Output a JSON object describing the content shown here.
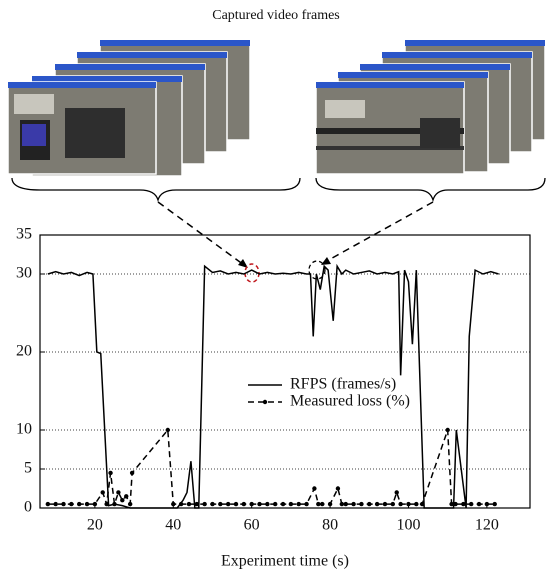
{
  "chart_data": {
    "type": "line",
    "title": "Captured video frames",
    "x_label": "Experiment time (s)",
    "xlim": [
      6,
      131
    ],
    "xticks": [
      20,
      40,
      60,
      80,
      100,
      120
    ],
    "ylim": [
      0,
      35
    ],
    "yticks": [
      0,
      5,
      10,
      20,
      30,
      35
    ],
    "grid": true,
    "series": [
      {
        "name": "RFPS (frames/s)",
        "color": "#000000",
        "style": "solid",
        "x": [
          8,
          10,
          12,
          14,
          16,
          18,
          19.5,
          20.5,
          21.5,
          23.5,
          25,
          27,
          29,
          31,
          33,
          35,
          37,
          39,
          41,
          42.5,
          43.5,
          44.5,
          45.5,
          46.5,
          48,
          50,
          52,
          54,
          56,
          58,
          60,
          62,
          64,
          66,
          68,
          70,
          72,
          74,
          75,
          75.7,
          76.5,
          77.5,
          78.5,
          79.5,
          80.8,
          81.8,
          83,
          84,
          86,
          88,
          90,
          92,
          94,
          96,
          97.5,
          98,
          99,
          100,
          101,
          102,
          104,
          106,
          108,
          110,
          111.5,
          112.2,
          114.7,
          115.5,
          117,
          119,
          121,
          123
        ],
        "values": [
          30,
          30.3,
          30,
          30.2,
          29.8,
          30.2,
          30,
          20,
          19.8,
          0.3,
          0.5,
          0.3,
          0,
          0,
          0,
          0,
          0,
          0,
          0,
          1,
          2,
          6,
          0,
          0,
          31,
          30.2,
          30.4,
          30,
          30.2,
          30,
          30.5,
          30,
          30.2,
          30,
          30.1,
          30,
          30.2,
          30,
          30,
          22,
          30,
          28,
          31,
          30.5,
          24,
          31,
          30,
          30.5,
          30,
          30.2,
          30.4,
          30,
          30.2,
          30,
          30.3,
          17,
          30.5,
          29,
          21,
          30.5,
          0,
          0,
          0,
          0,
          0,
          10,
          0,
          22,
          30.5,
          30,
          30.3,
          30
        ]
      },
      {
        "name": "Measured loss (%)",
        "color": "#000000",
        "style": "dashed",
        "x": [
          8,
          10,
          12,
          14,
          16,
          18,
          20,
          22,
          23,
          24,
          25,
          26,
          27,
          28,
          29,
          29.5,
          38.6,
          40,
          42,
          44,
          46,
          48,
          50,
          52,
          54,
          56,
          58,
          60,
          62,
          64,
          66,
          68,
          70,
          72,
          74,
          76,
          77,
          78,
          80,
          82,
          83,
          84,
          86,
          88,
          90,
          92,
          94,
          96,
          97,
          98,
          100,
          102,
          103.5,
          110,
          111,
          112,
          114,
          116,
          118,
          120,
          122
        ],
        "values": [
          0.5,
          0.5,
          0.5,
          0.5,
          0.5,
          0.5,
          0.5,
          2,
          0.5,
          4.5,
          0.5,
          2,
          1,
          1.5,
          0.5,
          4.5,
          10,
          0.5,
          0.5,
          0.5,
          0.5,
          0.5,
          0.5,
          0.5,
          0.5,
          0.5,
          0.5,
          0.5,
          0.5,
          0.5,
          0.5,
          0.5,
          0.5,
          0.5,
          0.5,
          2.5,
          0.5,
          0.5,
          0.5,
          2.5,
          0.5,
          0.5,
          0.5,
          0.5,
          0.5,
          0.5,
          0.5,
          0.5,
          2,
          0.5,
          0.5,
          0.5,
          0.5,
          10,
          0.5,
          0.5,
          0.5,
          0.5,
          0.5,
          0.5,
          0.5
        ]
      }
    ]
  }
}
